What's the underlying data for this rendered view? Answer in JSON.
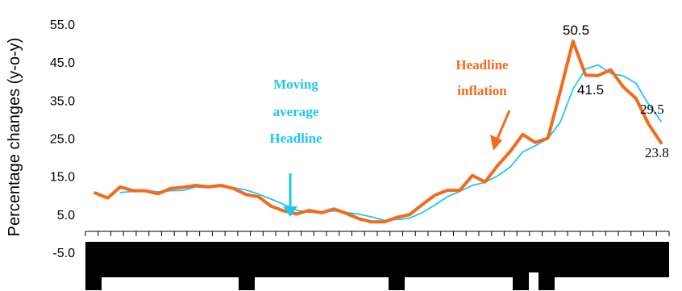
{
  "chart_data": {
    "type": "line",
    "ylabel": "Percentage changes (y-o-y)",
    "ylim": [
      -5,
      55
    ],
    "yticks": [
      "55.0",
      "45.0",
      "35.0",
      "25.0",
      "15.0",
      "5.0",
      "-5.0"
    ],
    "grid": false,
    "colors": {
      "headline": "#F26B1D",
      "moving_average": "#1EC8F0"
    },
    "series": [
      {
        "key": "headline",
        "values": [
          10.6,
          9.3,
          12.2,
          11.2,
          11.2,
          10.4,
          11.8,
          12.1,
          12.6,
          12.2,
          12.6,
          11.8,
          10.2,
          9.6,
          7.1,
          5.9,
          5.1,
          6.0,
          5.4,
          6.4,
          5.2,
          3.8,
          3.0,
          3.0,
          4.2,
          4.9,
          7.5,
          10.0,
          11.3,
          11.3,
          15.2,
          13.5,
          17.8,
          21.5,
          26.0,
          23.9,
          25.0,
          37.5,
          50.5,
          41.6,
          41.5,
          43.0,
          38.5,
          35.5,
          28.8,
          23.8
        ]
      },
      {
        "key": "moving_average",
        "values": [
          null,
          null,
          10.7,
          11.0,
          11.3,
          10.9,
          11.2,
          11.3,
          12.2,
          12.0,
          12.5,
          12.0,
          11.4,
          10.3,
          9.0,
          7.6,
          6.1,
          5.5,
          5.6,
          5.9,
          5.5,
          5.0,
          4.3,
          3.4,
          3.6,
          4.0,
          5.4,
          7.4,
          9.6,
          11.0,
          12.6,
          13.4,
          15.1,
          17.4,
          21.4,
          23.0,
          24.9,
          29.3,
          38.0,
          43.2,
          44.3,
          42.0,
          41.4,
          39.5,
          34.0,
          29.5
        ]
      }
    ],
    "annotations": {
      "moving_average_label": [
        "Moving",
        "average",
        "Headline"
      ],
      "headline_label": [
        "Headline",
        "inflation"
      ],
      "peak_value": "50.5",
      "trough_value": "41.5",
      "last_ma_value": "29.5",
      "last_headline_value": "23.8"
    }
  }
}
